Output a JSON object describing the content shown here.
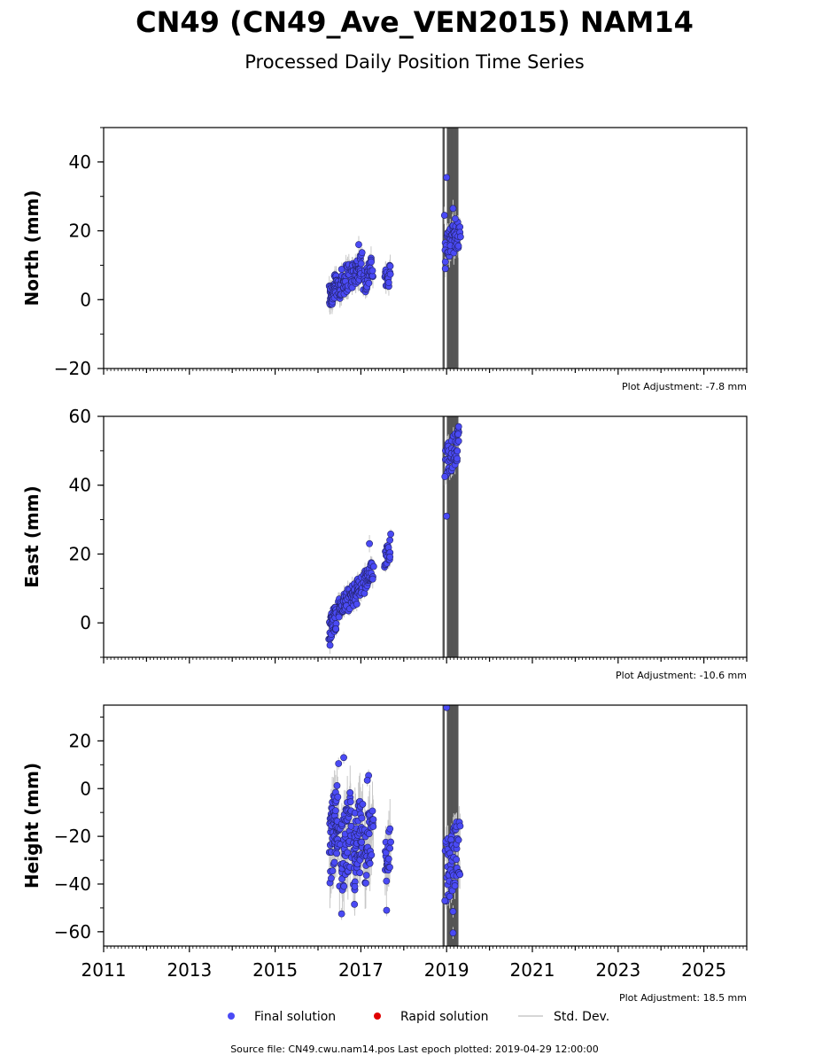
{
  "header": {
    "title": "CN49 (CN49_Ave_VEN2015) NAM14",
    "subtitle": "Processed Daily Position Time Series"
  },
  "chart_data": [
    {
      "type": "scatter",
      "ylabel": "North (mm)",
      "ylim": [
        -20,
        50
      ],
      "yticks": [
        -20,
        0,
        20,
        40
      ],
      "xlim": [
        2011,
        2026
      ],
      "adjustment": "Plot Adjustment: -7.8 mm",
      "clusters": [
        {
          "x_range": [
            2016.25,
            2016.45
          ],
          "y_range": [
            -2,
            7
          ],
          "n": 45,
          "err": 2.5
        },
        {
          "x_range": [
            2016.45,
            2016.75
          ],
          "y_range": [
            1,
            10
          ],
          "n": 40,
          "err": 2.5
        },
        {
          "x_range": [
            2016.75,
            2017.05
          ],
          "y_range": [
            4,
            13
          ],
          "n": 40,
          "err": 2.5
        },
        {
          "x_range": [
            2017.05,
            2017.3
          ],
          "y_range": [
            3,
            12
          ],
          "n": 30,
          "err": 2.5
        },
        {
          "x_range": [
            2017.55,
            2017.7
          ],
          "y_range": [
            3,
            10
          ],
          "n": 18,
          "err": 2.5
        },
        {
          "x_range": [
            2018.95,
            2019.33
          ],
          "y_range": [
            13,
            22
          ],
          "n": 50,
          "err": 2.5
        }
      ],
      "outliers": [
        [
          2016.95,
          16
        ],
        [
          2019.0,
          35.5
        ],
        [
          2018.95,
          24.5
        ],
        [
          2019.15,
          26.5
        ],
        [
          2019.2,
          23.5
        ],
        [
          2018.97,
          9
        ],
        [
          2018.97,
          11
        ]
      ]
    },
    {
      "type": "scatter",
      "ylabel": "East (mm)",
      "ylim": [
        -10,
        60
      ],
      "yticks": [
        0,
        20,
        40,
        60
      ],
      "xlim": [
        2011,
        2026
      ],
      "adjustment": "Plot Adjustment: -10.6 mm",
      "clusters": [
        {
          "x_range": [
            2016.25,
            2016.45
          ],
          "y_range": [
            -4,
            5
          ],
          "n": 40,
          "err": 2
        },
        {
          "x_range": [
            2016.45,
            2016.75
          ],
          "y_range": [
            2,
            9
          ],
          "n": 40,
          "err": 2
        },
        {
          "x_range": [
            2016.75,
            2017.05
          ],
          "y_range": [
            5,
            13
          ],
          "n": 45,
          "err": 2
        },
        {
          "x_range": [
            2017.05,
            2017.3
          ],
          "y_range": [
            9,
            17
          ],
          "n": 35,
          "err": 2
        },
        {
          "x_range": [
            2017.55,
            2017.7
          ],
          "y_range": [
            17,
            25
          ],
          "n": 20,
          "err": 2
        },
        {
          "x_range": [
            2018.95,
            2019.33
          ],
          "y_range": [
            44,
            55
          ],
          "n": 50,
          "err": 2
        }
      ],
      "outliers": [
        [
          2016.28,
          -6.5
        ],
        [
          2017.2,
          23
        ],
        [
          2019.0,
          31
        ],
        [
          2018.96,
          42.5
        ],
        [
          2019.28,
          57
        ]
      ]
    },
    {
      "type": "scatter",
      "ylabel": "Height (mm)",
      "ylim": [
        -66,
        35
      ],
      "yticks": [
        -60,
        -40,
        -20,
        0,
        20
      ],
      "xlim": [
        2011,
        2026
      ],
      "xticks": [
        2011,
        2013,
        2015,
        2017,
        2019,
        2021,
        2023,
        2025
      ],
      "adjustment": "Plot Adjustment: 18.5 mm",
      "clusters": [
        {
          "x_range": [
            2016.25,
            2016.5
          ],
          "y_range": [
            -35,
            0
          ],
          "n": 60,
          "err": 9
        },
        {
          "x_range": [
            2016.5,
            2016.8
          ],
          "y_range": [
            -40,
            -5
          ],
          "n": 55,
          "err": 9
        },
        {
          "x_range": [
            2016.8,
            2017.05
          ],
          "y_range": [
            -40,
            -5
          ],
          "n": 50,
          "err": 9
        },
        {
          "x_range": [
            2017.05,
            2017.3
          ],
          "y_range": [
            -38,
            -8
          ],
          "n": 40,
          "err": 9
        },
        {
          "x_range": [
            2017.55,
            2017.7
          ],
          "y_range": [
            -38,
            -15
          ],
          "n": 20,
          "err": 9
        },
        {
          "x_range": [
            2018.95,
            2019.33
          ],
          "y_range": [
            -45,
            -15
          ],
          "n": 55,
          "err": 5
        }
      ],
      "outliers": [
        [
          2016.48,
          10.5
        ],
        [
          2016.6,
          13
        ],
        [
          2017.18,
          5.5
        ],
        [
          2017.15,
          3.5
        ],
        [
          2016.55,
          -52.5
        ],
        [
          2016.85,
          -48.5
        ],
        [
          2017.6,
          -51
        ],
        [
          2019.15,
          -60.5
        ],
        [
          2019.15,
          -51.5
        ],
        [
          2019.0,
          34
        ],
        [
          2018.96,
          -47
        ]
      ]
    }
  ],
  "break_lines": [
    2018.93,
    2019.02,
    2019.04,
    2019.06,
    2019.08,
    2019.1,
    2019.12,
    2019.14,
    2019.16,
    2019.18,
    2019.2,
    2019.22,
    2019.24,
    2019.26
  ],
  "legend": {
    "items": [
      {
        "label": "Final solution",
        "color": "#4a4af5"
      },
      {
        "label": "Rapid solution",
        "color": "#e00000"
      },
      {
        "label": "Std. Dev.",
        "color": "#c8c8c8"
      }
    ]
  },
  "footer": {
    "source_text": "Source file: CN49.cwu.nam14.pos  Last epoch plotted: 2019-04-29 12:00:00"
  },
  "colors": {
    "final": "#4a4af5",
    "rapid": "#e00000",
    "stddev": "#c8c8c8",
    "break": "#555555"
  }
}
